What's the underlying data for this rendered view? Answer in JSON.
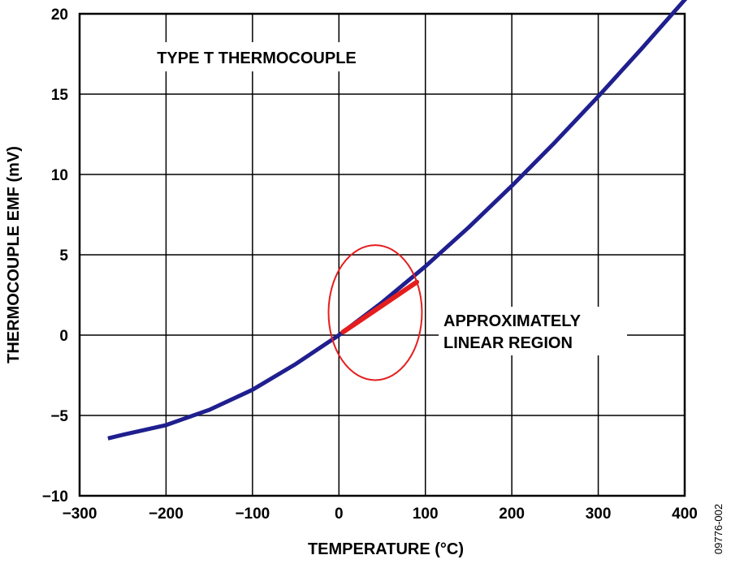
{
  "chart_data": {
    "type": "line",
    "title": "",
    "xlabel": "TEMPERATURE (°C)",
    "ylabel": "THERMOCOUPLE EMF (mV)",
    "xlim": [
      -300,
      400
    ],
    "ylim": [
      -10,
      20
    ],
    "xticks": [
      -300,
      -200,
      -100,
      0,
      100,
      200,
      300,
      400
    ],
    "xtick_labels": [
      "−300",
      "−200",
      "−100",
      "0",
      "100",
      "200",
      "300",
      "400"
    ],
    "yticks": [
      -10,
      -5,
      0,
      5,
      10,
      15,
      20
    ],
    "ytick_labels": [
      "−10",
      "−5",
      "0",
      "5",
      "10",
      "15",
      "20"
    ],
    "grid": true,
    "series": [
      {
        "color": "#1f1f8f",
        "x": [
          -265,
          -250,
          -200,
          -150,
          -100,
          -50,
          0,
          50,
          100,
          150,
          200,
          250,
          300,
          350,
          400
        ],
        "y": [
          -6.4,
          -6.2,
          -5.6,
          -4.65,
          -3.4,
          -1.8,
          0.0,
          2.04,
          4.28,
          6.7,
          9.29,
          12.01,
          14.86,
          17.82,
          20.87
        ]
      }
    ],
    "highlight": {
      "color": "#e41e1e",
      "x_range": [
        5,
        90
      ],
      "y_at_ends": [
        0.2,
        3.3
      ],
      "center": [
        42,
        1.4
      ],
      "radius_x": 54,
      "radius_y": 4.2
    },
    "annotations": [
      {
        "text": "TYPE T THERMOCOUPLE"
      },
      {
        "lines": [
          "APPROXIMATELY",
          "LINEAR REGION"
        ]
      }
    ],
    "figure_id": "09776-002"
  }
}
